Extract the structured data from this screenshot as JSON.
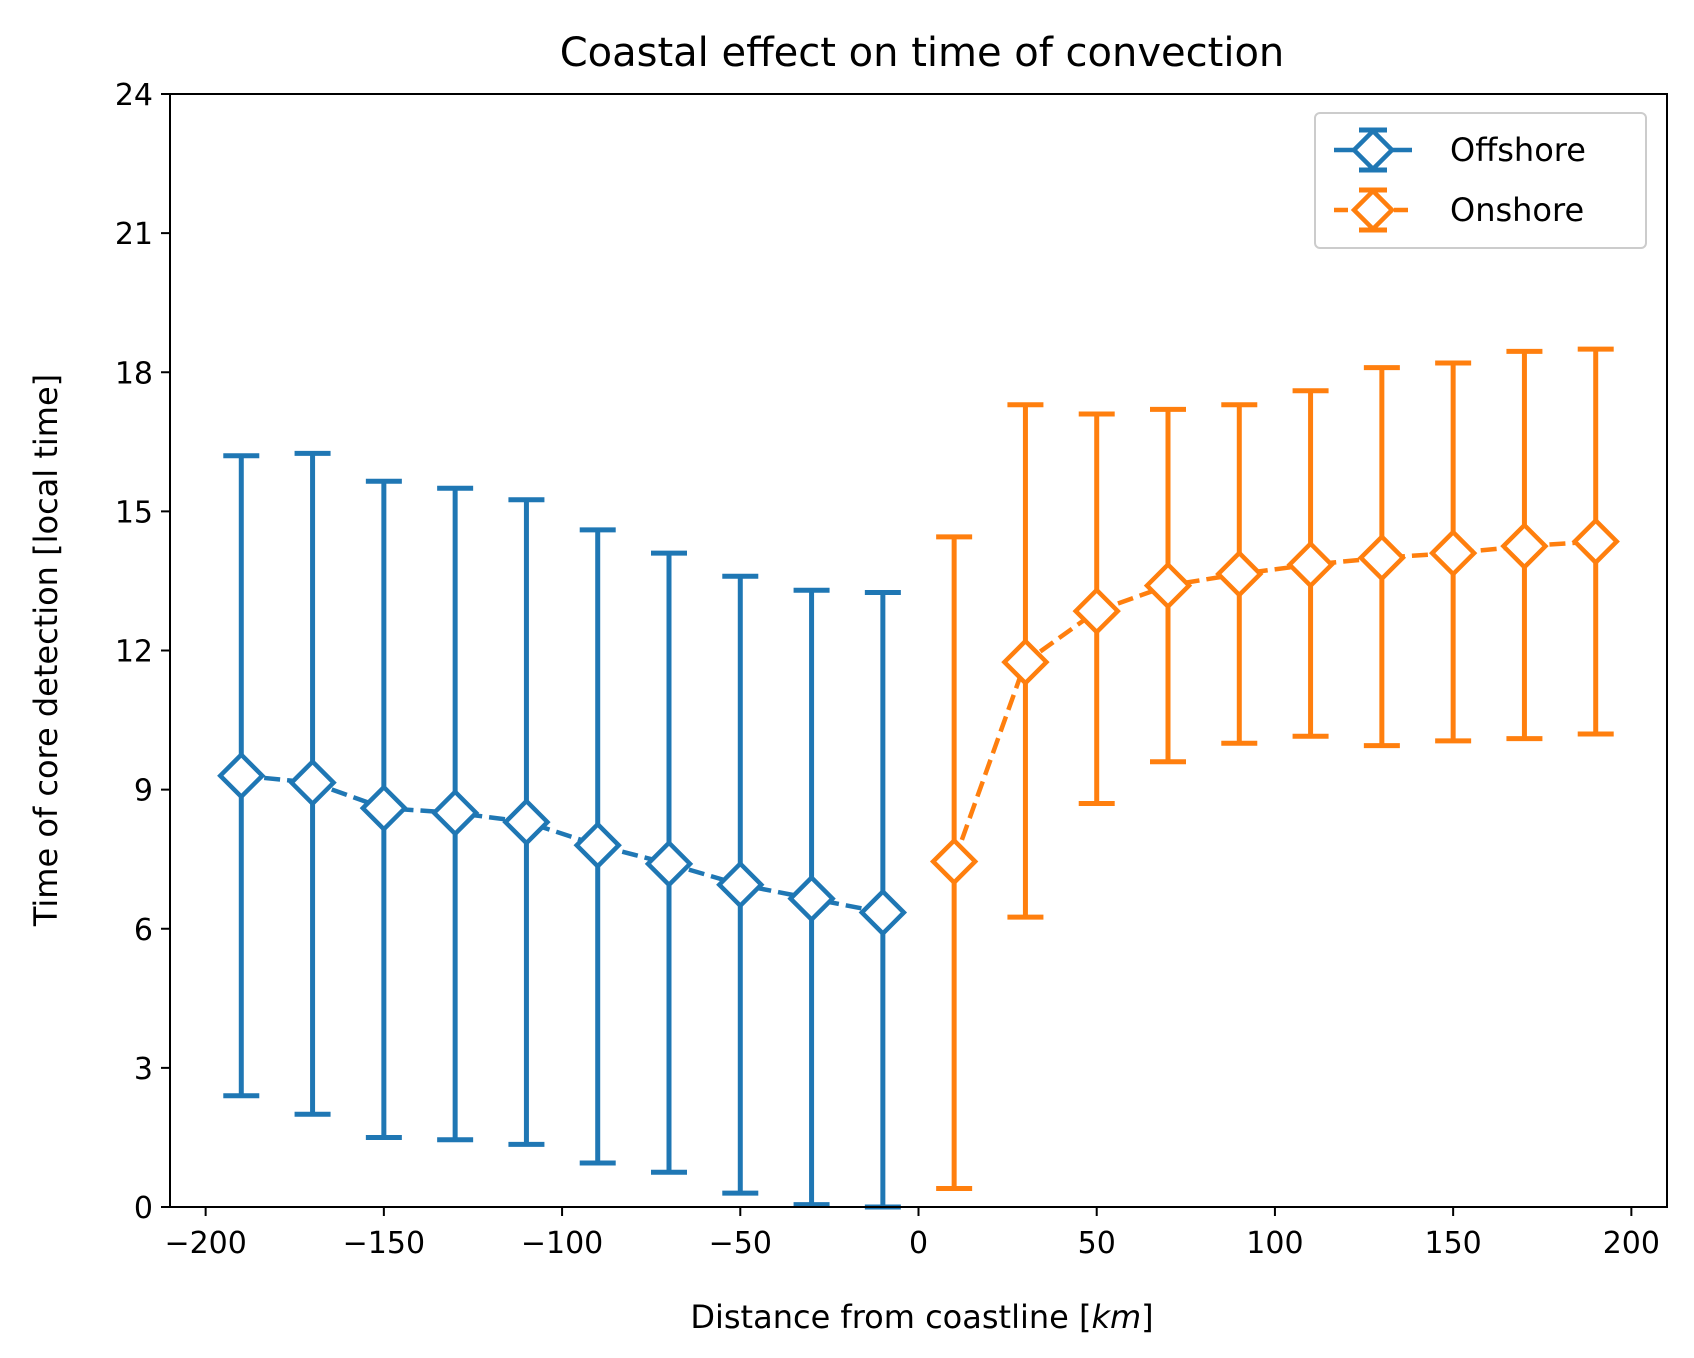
{
  "chart_data": {
    "type": "line",
    "title": "Coastal effect on time of convection",
    "xlabel": "Distance from coastline [",
    "xlabel_unit": "km",
    "xlabel_close": "]",
    "ylabel": "Time of core detection [local time]",
    "xlim": [
      -210,
      210
    ],
    "ylim": [
      0,
      24
    ],
    "xticks": [
      -200,
      -150,
      -100,
      -50,
      0,
      50,
      100,
      150,
      200
    ],
    "xtick_labels": [
      "−200",
      "−150",
      "−100",
      "−50",
      "0",
      "50",
      "100",
      "150",
      "200"
    ],
    "yticks": [
      0,
      3,
      6,
      9,
      12,
      15,
      18,
      21,
      24
    ],
    "ytick_labels": [
      "0",
      "3",
      "6",
      "9",
      "12",
      "15",
      "18",
      "21",
      "24"
    ],
    "grid": false,
    "legend": "top-right",
    "series": [
      {
        "name": "Offshore",
        "color": "#1f77b4",
        "marker": "diamond",
        "x": [
          -190,
          -170,
          -150,
          -130,
          -110,
          -90,
          -70,
          -50,
          -30,
          -10
        ],
        "y": [
          9.3,
          9.15,
          8.6,
          8.5,
          8.3,
          7.8,
          7.4,
          6.95,
          6.65,
          6.35
        ],
        "err_low": [
          2.4,
          2.0,
          1.5,
          1.45,
          1.35,
          0.95,
          0.75,
          0.3,
          0.05,
          0.0
        ],
        "err_high": [
          16.2,
          16.25,
          15.65,
          15.5,
          15.25,
          14.6,
          14.1,
          13.6,
          13.3,
          13.25
        ]
      },
      {
        "name": "Onshore",
        "color": "#ff7f0e",
        "marker": "diamond",
        "x": [
          10,
          30,
          50,
          70,
          90,
          110,
          130,
          150,
          170,
          190
        ],
        "y": [
          7.45,
          11.75,
          12.85,
          13.4,
          13.65,
          13.85,
          14.0,
          14.1,
          14.25,
          14.35
        ],
        "err_low": [
          0.4,
          6.25,
          8.7,
          9.6,
          10.0,
          10.15,
          9.95,
          10.05,
          10.1,
          10.2
        ],
        "err_high": [
          14.45,
          17.3,
          17.1,
          17.2,
          17.3,
          17.6,
          18.1,
          18.2,
          18.45,
          18.5
        ]
      }
    ]
  }
}
